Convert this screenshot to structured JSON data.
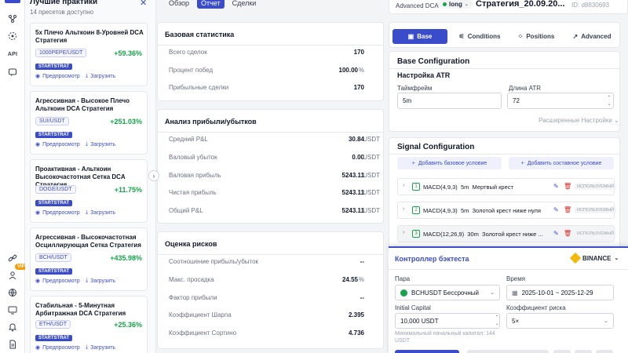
{
  "rail": {
    "icons": [
      "network-icon",
      "atom-icon",
      "api-label",
      "chat-icon",
      "link-icon",
      "user-icon",
      "globe-icon",
      "monitor-icon",
      "bell-icon",
      "document-icon"
    ],
    "api_label": "API",
    "vip_label": "VIP"
  },
  "left_panel": {
    "title": "Лучшие практики",
    "subtitle": "14 пресетов доступно",
    "cards": [
      {
        "name": "5х Плечо Альткоин 8-Уровней DCA Стратегия",
        "pair": "1000PEPE/USDT",
        "pnl": "+59.36%",
        "tag": "STARTSTRAT"
      },
      {
        "name": "Агрессивная - Высокое Плечо Альткоин DCA Стратегия",
        "pair": "SUI/USDT",
        "pnl": "+251.03%",
        "tag": "STARTSTRAT"
      },
      {
        "name": "Проактивная - Альткоин Высокочастотная Сетка DCA Стратегия",
        "pair": "DOGE/USDT",
        "pnl": "+11.75%",
        "tag": "STARTSTRAT"
      },
      {
        "name": "Агрессивная - Высокочастотная Осциллирующая Сетка Стратегия",
        "pair": "BCH/USDT",
        "pnl": "+435.98%",
        "tag": "STARTSTRAT"
      },
      {
        "name": "Стабильная - 5-Минутная Арбитражная DCA Стратегия",
        "pair": "ETH/USDT",
        "pnl": "+25.36%",
        "tag": "STARTSTRAT"
      }
    ],
    "preview_label": "Предпросмотр",
    "load_label": "Загрузить"
  },
  "middle": {
    "tabs": [
      "Обзор",
      "Отчет",
      "Сделки"
    ],
    "active_tab": "Отчет",
    "basic_stats": {
      "title": "Базовая статистика",
      "rows": [
        {
          "label": "Всего сделок",
          "value": "170",
          "unit": ""
        },
        {
          "label": "Процент побед",
          "value": "100.00",
          "unit": "%"
        },
        {
          "label": "Прибыльные сделки",
          "value": "170",
          "unit": ""
        }
      ]
    },
    "pnl_analysis": {
      "title": "Анализ прибыли/убытков",
      "rows": [
        {
          "label": "Средний P&L",
          "value": "30.84",
          "unit": "USDT"
        },
        {
          "label": "Валовый убыток",
          "value": "0.00",
          "unit": "USDT"
        },
        {
          "label": "Валовая прибыль",
          "value": "5243.11",
          "unit": "USDT"
        },
        {
          "label": "Чистая прибыль",
          "value": "5243.11",
          "unit": "USDT"
        },
        {
          "label": "Общий P&L",
          "value": "5243.11",
          "unit": "USDT"
        }
      ]
    },
    "risk": {
      "title": "Оценка рисков",
      "rows": [
        {
          "label": "Соотношение прибыль/убыток",
          "value": "--",
          "unit": ""
        },
        {
          "label": "Макс. просадка",
          "value": "24.55",
          "unit": "%"
        },
        {
          "label": "Фактор прибыли",
          "value": "--",
          "unit": ""
        },
        {
          "label": "Коэффициент Шарпа",
          "value": "2.395",
          "unit": ""
        },
        {
          "label": "Коэффициент Сортино",
          "value": "4.736",
          "unit": ""
        }
      ]
    }
  },
  "right": {
    "header": {
      "mode": "Advanced DCA",
      "direction": "long",
      "strategy_name": "Стратегия_20.09.20...",
      "id": "ID: d8830693"
    },
    "tabs": [
      "Base",
      "Conditions",
      "Positions",
      "Advanced"
    ],
    "active_tab": "Base",
    "base_config": {
      "title": "Base Configuration",
      "atr_title": "Настройка ATR",
      "timeframe_label": "Таймфрейм",
      "timeframe_value": "5m",
      "atr_length_label": "Длина ATR",
      "atr_length_value": "72",
      "advanced_settings": "Расширенные Настройки"
    },
    "signal_config": {
      "title": "Signal Configuration",
      "add_base": "Добавить базовое условие",
      "add_composite": "Добавить составное условие",
      "used_label": "ИСПОЛЬЗУЕМЫЙ",
      "conditions": [
        {
          "num": "1",
          "indicator": "MACD(4,9,3)",
          "tf": "5m",
          "name": "Мертвый крест"
        },
        {
          "num": "2",
          "indicator": "MACD(4,9,3)",
          "tf": "5m",
          "name": "Золотой крест ниже нуля"
        },
        {
          "num": "3",
          "indicator": "MACD(12,26,9)",
          "tf": "30m",
          "name": "Золотой крест ниже ..."
        }
      ]
    },
    "backtest": {
      "title": "Контроллер бэктеста",
      "exchange": "BINANCE",
      "pair_label": "Пара",
      "pair_value": "BCHUSDT Бессрочный",
      "time_label": "Время",
      "time_value": "2025-10-01 ~ 2025-12-29",
      "capital_label": "Initial Capital",
      "capital_value": "10,000 USDT",
      "risk_label": "Коэффициент риска",
      "risk_value": "5×",
      "min_capital_note": "Минимальный начальный капитал: 144 USDT"
    }
  }
}
